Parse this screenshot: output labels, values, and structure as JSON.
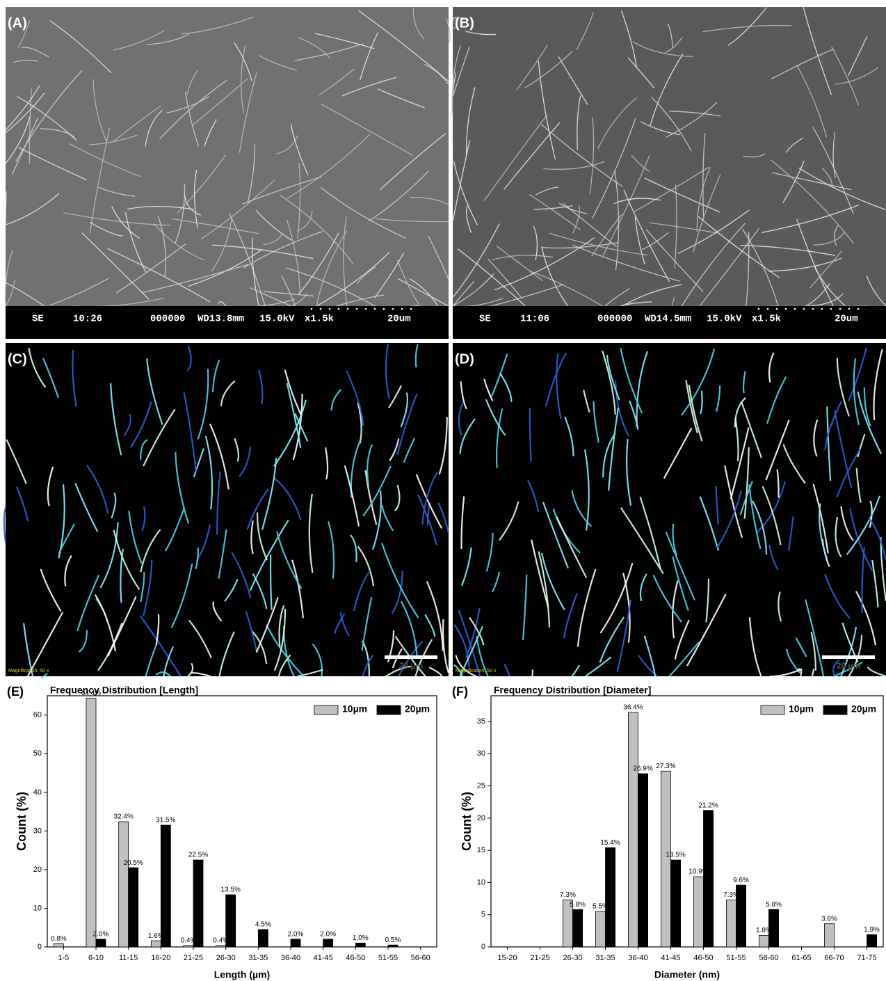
{
  "panels": [
    {
      "label": "(A)",
      "info": [
        "SE",
        "10:26",
        "000000",
        "WD13.8mm",
        "15.0kV",
        "x1.5k",
        "20um"
      ]
    },
    {
      "label": "(B)",
      "info": [
        "SE",
        "11:06",
        "000000",
        "WD14.5mm",
        "15.0kV",
        "x1.5k",
        "20um"
      ]
    },
    {
      "label": "(C)",
      "magnification": "Magnification: 50 x",
      "scale": "20 µm"
    },
    {
      "label": "(D)",
      "magnification": "Magnification: 50 x",
      "scale": "20 µm"
    }
  ],
  "chart_data": [
    {
      "type": "bar",
      "panel_label": "(E)",
      "title": "Frequency Distribution [Length]",
      "x_label": "Length (µm)",
      "y_label": "Count (%)",
      "categories": [
        "1-5",
        "6-10",
        "11-15",
        "16-20",
        "21-25",
        "26-30",
        "31-35",
        "36-40",
        "41-45",
        "46-50",
        "51-55",
        "56-60"
      ],
      "series": [
        {
          "name": "10µm",
          "color": "#c0c0c0",
          "values": [
            0.8,
            64.4,
            32.4,
            1.6,
            0.4,
            0.4,
            null,
            null,
            null,
            null,
            null,
            null
          ],
          "value_labels": [
            "0.8%",
            "64.4%",
            "32.4%",
            "1.6%",
            "0.4%",
            "0.4%",
            null,
            null,
            null,
            null,
            null,
            null
          ]
        },
        {
          "name": "20µm",
          "color": "#000000",
          "values": [
            null,
            2.0,
            20.5,
            31.5,
            22.5,
            13.5,
            4.5,
            2.0,
            2.0,
            1.0,
            0.5,
            null
          ],
          "value_labels": [
            null,
            "2.0%",
            "20.5%",
            "31.5%",
            "22.5%",
            "13.5%",
            "4.5%",
            "2.0%",
            "2.0%",
            "1.0%",
            "0.5%",
            null
          ]
        }
      ],
      "ylim": [
        0,
        65
      ],
      "yticks": [
        0,
        10,
        20,
        30,
        40,
        50,
        60
      ],
      "legend": "upper right"
    },
    {
      "type": "bar",
      "panel_label": "(F)",
      "title": "Frequency Distribution [Diameter]",
      "x_label": "Diameter (nm)",
      "y_label": "Count (%)",
      "categories": [
        "15-20",
        "21-25",
        "26-30",
        "31-35",
        "36-40",
        "41-45",
        "46-50",
        "51-55",
        "56-60",
        "61-65",
        "66-70",
        "71-75"
      ],
      "series": [
        {
          "name": "10µm",
          "color": "#c0c0c0",
          "values": [
            null,
            null,
            7.3,
            5.5,
            36.4,
            27.3,
            10.9,
            7.3,
            1.8,
            null,
            3.6,
            null
          ],
          "value_labels": [
            null,
            null,
            "7.3%",
            "5.5%",
            "36.4%",
            "27.3%",
            "10.9%",
            "7.3%",
            "1.8%",
            null,
            "3.6%",
            null
          ]
        },
        {
          "name": "20µm",
          "color": "#000000",
          "values": [
            null,
            null,
            5.8,
            15.4,
            26.9,
            13.5,
            21.2,
            9.6,
            5.8,
            null,
            null,
            1.9
          ],
          "value_labels": [
            null,
            null,
            "5.8%",
            "15.4%",
            "26.9%",
            "13.5%",
            "21.2%",
            "9.6%",
            "5.8%",
            null,
            null,
            "1.9%"
          ]
        }
      ],
      "ylim": [
        0,
        39
      ],
      "yticks": [
        0,
        5,
        10,
        15,
        20,
        25,
        30,
        35
      ],
      "legend": "upper right"
    }
  ]
}
